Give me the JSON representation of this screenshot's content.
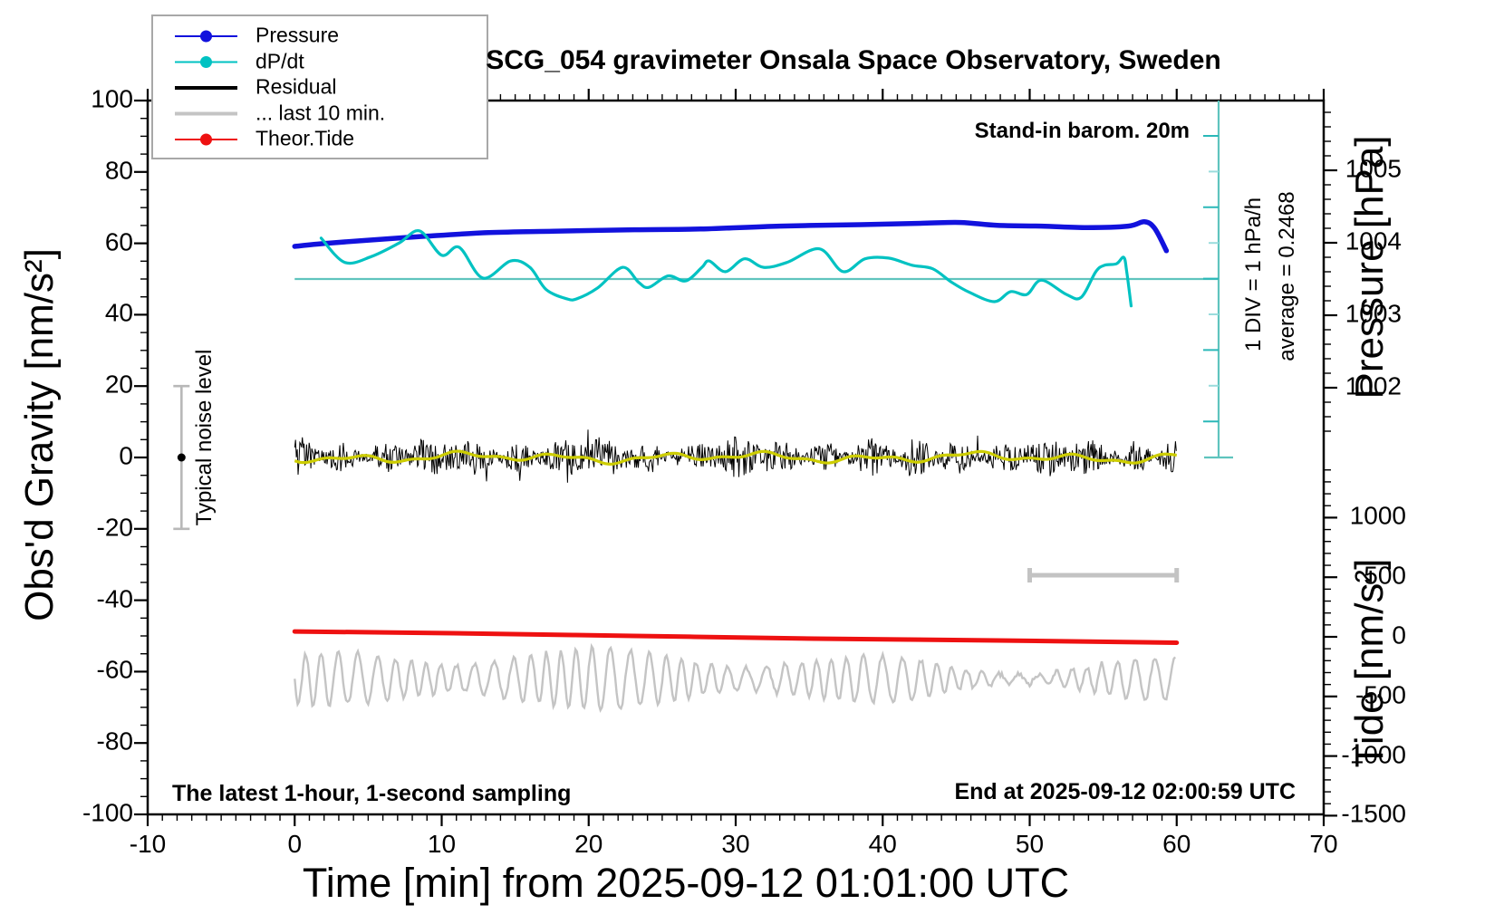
{
  "title": "SCG_054 gravimeter Onsala Space Observatory, Sweden",
  "annotations": {
    "stand_in_barometer": "Stand-in barom. 20m",
    "div_scale": "1 DIV = 1 hPa/h",
    "average": "average = 0.2468",
    "noise_level": "Typical noise level",
    "sampling_note": "The latest 1-hour, 1-second sampling",
    "end_note": "End at 2025-09-12 02:00:59 UTC"
  },
  "axes": {
    "x": {
      "label": "Time [min] from 2025-09-12 01:01:00 UTC",
      "range": [
        -10,
        70
      ],
      "ticks": [
        -10,
        0,
        10,
        20,
        30,
        40,
        50,
        60,
        70
      ],
      "minor_step": 1
    },
    "gravity": {
      "label": "Obs'd Gravity [nm/s²]",
      "range": [
        -100,
        100
      ],
      "ticks": [
        100,
        80,
        60,
        40,
        20,
        0,
        -20,
        -40,
        -60,
        -80,
        -100
      ],
      "minor_step": 5
    },
    "pressure": {
      "label": "Pressure [hPa]",
      "ticks": [
        1005,
        1004,
        1003,
        1002
      ],
      "minor_step": 0.2
    },
    "tide": {
      "label": "Tide [nm/s²]",
      "ticks": [
        1000,
        500,
        0,
        -500,
        -1000,
        -1500
      ],
      "minor_step": 100
    }
  },
  "legend": {
    "items": [
      {
        "label": "Pressure",
        "color": "#1212dd",
        "width": 2,
        "dot": true
      },
      {
        "label": "dP/dt",
        "color": "#00c2c2",
        "width": 2,
        "dot": true
      },
      {
        "label": "Residual",
        "color": "#000000",
        "width": 4,
        "dot": false
      },
      {
        "label": "... last 10 min.",
        "color": "#c4c4c4",
        "width": 4,
        "dot": false
      },
      {
        "label": "Theor.Tide",
        "color": "#ee1111",
        "width": 2,
        "dot": true
      }
    ]
  },
  "colors": {
    "pressure": "#1212dd",
    "dpdt": "#00c2c2",
    "dpdt_ref": "#5fc4be",
    "residual": "#000000",
    "residual_smooth": "#cdcd00",
    "last10": "#c4c4c4",
    "tide": "#ee1111",
    "noise_bar": "#b8b8b8",
    "scale_bar": "#c3c3c3"
  },
  "chart_data": {
    "type": "line",
    "title": "SCG_054 gravimeter Onsala Space Observatory, Sweden",
    "xlabel": "Time [min] from 2025-09-12 01:01:00 UTC",
    "xlim": [
      -10,
      70
    ],
    "gravity_ylim": [
      -100,
      100
    ],
    "pressure_tick_values": [
      1005,
      1004,
      1003,
      1002
    ],
    "tide_tick_values": [
      1000,
      500,
      0,
      -500,
      -1000,
      -1500
    ],
    "series": [
      {
        "name": "Pressure",
        "axis": "pressure_hPa",
        "points": [
          [
            0,
            1003.95
          ],
          [
            2,
            1003.99
          ],
          [
            4.6,
            1004.03
          ],
          [
            8.9,
            1004.09
          ],
          [
            13.2,
            1004.14
          ],
          [
            17.6,
            1004.16
          ],
          [
            23.1,
            1004.18
          ],
          [
            27.6,
            1004.19
          ],
          [
            33,
            1004.23
          ],
          [
            38.5,
            1004.25
          ],
          [
            42.8,
            1004.27
          ],
          [
            45.3,
            1004.28
          ],
          [
            47.8,
            1004.24
          ],
          [
            50.8,
            1004.23
          ],
          [
            53.9,
            1004.21
          ],
          [
            56.7,
            1004.23
          ],
          [
            57.8,
            1004.29
          ],
          [
            58.5,
            1004.2
          ],
          [
            59.3,
            1003.89
          ]
        ]
      },
      {
        "name": "dP/dt",
        "axis": "hPa_per_hour",
        "points": [
          [
            1.8,
            0.82
          ],
          [
            3.4,
            0.48
          ],
          [
            5.2,
            0.56
          ],
          [
            7.1,
            0.75
          ],
          [
            8.5,
            0.92
          ],
          [
            10,
            0.58
          ],
          [
            11.2,
            0.69
          ],
          [
            12.8,
            0.26
          ],
          [
            14.7,
            0.5
          ],
          [
            16,
            0.41
          ],
          [
            17.1,
            0.1
          ],
          [
            18.5,
            -0.03
          ],
          [
            19.2,
            -0.03
          ],
          [
            20.6,
            0.12
          ],
          [
            22.3,
            0.41
          ],
          [
            23.4,
            0.2
          ],
          [
            24.1,
            0.13
          ],
          [
            25.4,
            0.29
          ],
          [
            26.6,
            0.22
          ],
          [
            27.7,
            0.41
          ],
          [
            28.2,
            0.5
          ],
          [
            29.3,
            0.35
          ],
          [
            30.6,
            0.53
          ],
          [
            31.9,
            0.41
          ],
          [
            33.5,
            0.48
          ],
          [
            35.7,
            0.67
          ],
          [
            37.3,
            0.35
          ],
          [
            38.8,
            0.53
          ],
          [
            40.4,
            0.54
          ],
          [
            42,
            0.44
          ],
          [
            43.4,
            0.39
          ],
          [
            44.7,
            0.2
          ],
          [
            45.9,
            0.06
          ],
          [
            47.6,
            -0.07
          ],
          [
            48.7,
            0.07
          ],
          [
            49.8,
            0.03
          ],
          [
            50.8,
            0.23
          ],
          [
            52.5,
            0.03
          ],
          [
            53.5,
            -0.01
          ],
          [
            54.5,
            0.35
          ],
          [
            55.1,
            0.44
          ],
          [
            55.9,
            0.46
          ],
          [
            56.4,
            0.55
          ],
          [
            56.6,
            0.35
          ],
          [
            56.9,
            -0.13
          ]
        ],
        "reference_line_value": 0.2468,
        "scale_note": "1 DIV = 1 hPa/h",
        "average": 0.2468
      },
      {
        "name": "Theor.Tide",
        "axis": "tide_nms2",
        "points": [
          [
            0,
            45
          ],
          [
            10.8,
            30
          ],
          [
            23.1,
            8
          ],
          [
            35.4,
            -15
          ],
          [
            47.8,
            -30
          ],
          [
            60,
            -49
          ]
        ]
      },
      {
        "name": "Residual",
        "axis": "gravity_nms2",
        "style": "noise",
        "mean": 0,
        "band_amplitude": 5,
        "peak_amplitude": 9,
        "smoothed_overlay_amplitude": 1.5
      },
      {
        "name": "... last 10 min.",
        "axis": "gravity_nms2",
        "style": "oscillation",
        "offset": -62,
        "amplitude": 5,
        "cycles": 52
      }
    ],
    "extras": {
      "noise_bar": {
        "t": -7.7,
        "center_gravity": 0,
        "half_range_gravity": 20
      },
      "last10_scale_bar": {
        "t_start": 50,
        "t_end": 60,
        "gravity_level": -33
      }
    },
    "legend_position": "top-left",
    "grid": false
  }
}
